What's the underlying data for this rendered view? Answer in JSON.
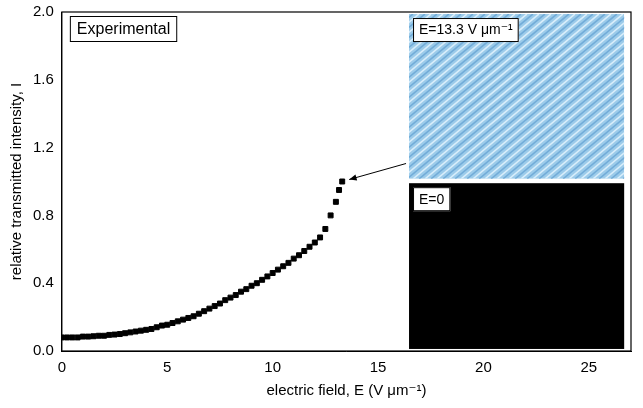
{
  "chart_data": {
    "type": "scatter",
    "x_label": "electric field, E (V μm⁻¹)",
    "y_label": "relative transmitted intensity, I",
    "annotations": [
      "Experimental",
      "E=13.3 V μm⁻¹",
      "E=0"
    ],
    "x": [
      0,
      0.25,
      0.5,
      0.75,
      1,
      1.25,
      1.5,
      1.75,
      2,
      2.25,
      2.5,
      2.75,
      3,
      3.25,
      3.5,
      3.75,
      4,
      4.25,
      4.5,
      4.75,
      5,
      5.25,
      5.5,
      5.75,
      6,
      6.25,
      6.5,
      6.75,
      7,
      7.25,
      7.5,
      7.75,
      8,
      8.25,
      8.5,
      8.75,
      9,
      9.25,
      9.5,
      9.75,
      10,
      10.25,
      10.5,
      10.75,
      11,
      11.25,
      11.5,
      11.75,
      12,
      12.25,
      12.5,
      12.75,
      13,
      13.15,
      13.3
    ],
    "values": [
      0.08,
      0.08,
      0.08,
      0.08,
      0.085,
      0.085,
      0.087,
      0.09,
      0.09,
      0.095,
      0.097,
      0.1,
      0.105,
      0.11,
      0.115,
      0.12,
      0.125,
      0.13,
      0.14,
      0.15,
      0.155,
      0.165,
      0.175,
      0.185,
      0.195,
      0.205,
      0.22,
      0.235,
      0.25,
      0.265,
      0.28,
      0.3,
      0.315,
      0.33,
      0.35,
      0.365,
      0.385,
      0.4,
      0.42,
      0.44,
      0.46,
      0.48,
      0.5,
      0.52,
      0.545,
      0.565,
      0.59,
      0.615,
      0.64,
      0.67,
      0.72,
      0.8,
      0.88,
      0.95,
      1.0
    ],
    "color": "#000000",
    "marker": "square",
    "xlim": [
      0,
      27
    ],
    "xticks": [
      0,
      5,
      10,
      15,
      20,
      25
    ],
    "ylim": [
      0,
      2.0
    ],
    "yticks": [
      {
        "value": 0,
        "label": "0.0"
      },
      0.4,
      0.8,
      1.2,
      1.6,
      {
        "value": 2,
        "label": "2.0"
      }
    ],
    "grid": false
  }
}
